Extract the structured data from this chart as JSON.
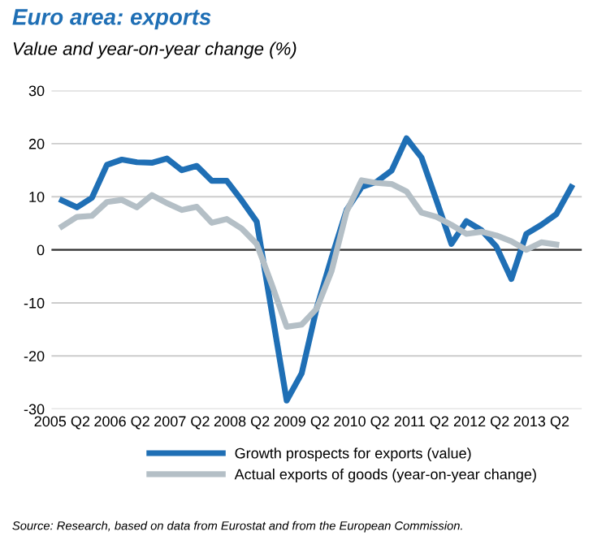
{
  "chart_data": {
    "type": "line",
    "title": "Euro area: exports",
    "subtitle": "Value and year-on-year change (%)",
    "categories": [
      "2005 Q2",
      null,
      null,
      null,
      "2006 Q2",
      null,
      null,
      null,
      "2007 Q2",
      null,
      null,
      null,
      "2008 Q2",
      null,
      null,
      null,
      "2009 Q2",
      null,
      null,
      null,
      "2010 Q2",
      null,
      null,
      null,
      "2011 Q2",
      null,
      null,
      null,
      "2012 Q2",
      null,
      null,
      null,
      "2013 Q2",
      null,
      null
    ],
    "series": [
      {
        "name": "Growth prospects for exports (value)",
        "color": "#1f6fb5",
        "values": [
          9.3,
          8.0,
          9.8,
          16,
          17,
          16.5,
          16.4,
          17.2,
          15,
          15.8,
          13,
          13,
          9.3,
          5.3,
          -11.6,
          -28.4,
          -23.3,
          -11,
          -1.5,
          7.5,
          11.8,
          12.8,
          14.9,
          21,
          17.4,
          9.3,
          1.1,
          5.4,
          3.7,
          0.6,
          -5.5,
          3,
          4.7,
          6.7,
          11.8
        ]
      },
      {
        "name": "Actual exports of goods (year-on-year change)",
        "color": "#b4bfc6",
        "values": [
          4.4,
          6.2,
          6.4,
          9,
          9.4,
          8,
          10.3,
          8.8,
          7.5,
          8.1,
          5.1,
          5.8,
          4,
          1.1,
          -6.5,
          -14.5,
          -14.1,
          -11.1,
          -4,
          7.2,
          13.1,
          12.6,
          12.4,
          11,
          7,
          6.2,
          4.7,
          3,
          3.4,
          2.7,
          1.6,
          0,
          1.4,
          1,
          null
        ]
      }
    ],
    "ylim": [
      -30,
      30
    ],
    "yticks": [
      -30,
      -20,
      -10,
      0,
      10,
      20,
      30
    ],
    "grid": "y",
    "legend": "bottom",
    "annotations": [
      "Source: Research, based on data from Eurostat and from the European Commission."
    ]
  }
}
